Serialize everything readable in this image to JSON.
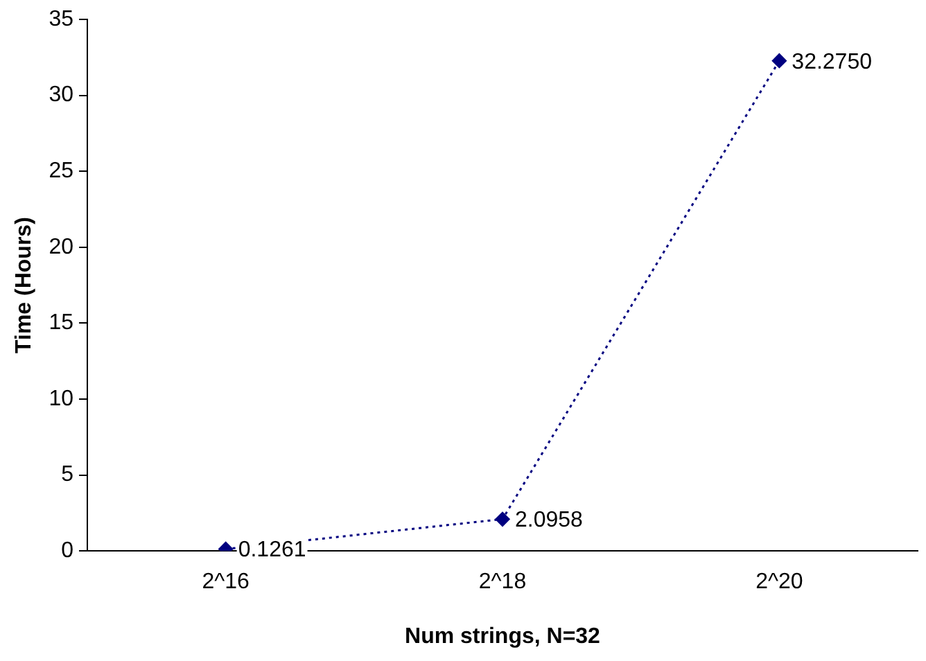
{
  "chart_data": {
    "type": "line",
    "xlabel": "Num strings, N=32",
    "ylabel": "Time (Hours)",
    "categories": [
      "2^16",
      "2^18",
      "2^20"
    ],
    "series": [
      {
        "color": "#000080",
        "values": [
          0.1261,
          2.0958,
          32.275
        ],
        "value_labels": [
          "0.1261",
          "2.0958",
          "32.2750"
        ]
      }
    ],
    "ylim": [
      0,
      35
    ],
    "yticks": [
      0,
      5,
      10,
      15,
      20,
      25,
      30,
      35
    ],
    "grid": false,
    "legend": false,
    "marker": "diamond",
    "line_style": "dotted"
  }
}
